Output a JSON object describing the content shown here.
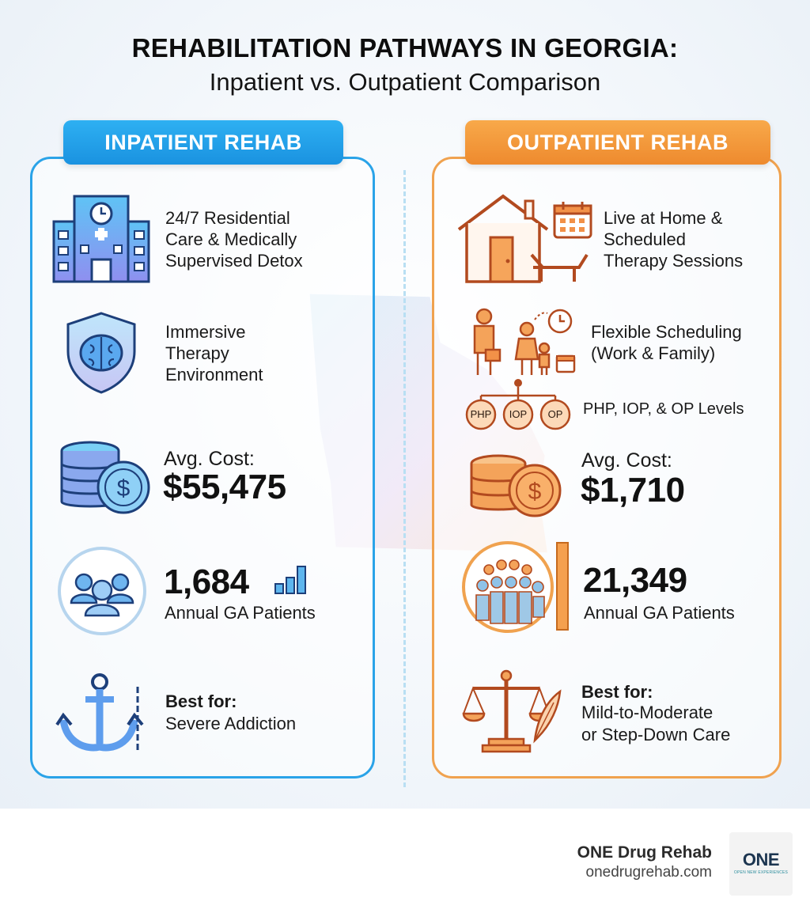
{
  "header": {
    "title": "REHABILITATION PATHWAYS IN GEORGIA:",
    "subtitle": "Inpatient vs. Outpatient Comparison"
  },
  "inpatient": {
    "badge": "INPATIENT REHAB",
    "care_lines": [
      "24/7 Residential",
      "Care & Medically",
      "Supervised Detox"
    ],
    "therapy_lines": [
      "Immersive",
      "Therapy",
      "Environment"
    ],
    "cost_label": "Avg. Cost:",
    "cost_value": "$55,475",
    "patients_value": "1,684",
    "patients_label": "Annual GA Patients",
    "best_label": "Best for:",
    "best_value": "Severe Addiction"
  },
  "outpatient": {
    "badge": "OUTPATIENT REHAB",
    "home_lines": [
      "Live at Home &",
      "Scheduled",
      "Therapy Sessions"
    ],
    "flex_lines": [
      "Flexible Scheduling",
      "(Work & Family)"
    ],
    "levels": "PHP, IOP, & OP Levels",
    "level_badges": [
      "PHP",
      "IOP",
      "OP"
    ],
    "cost_label": "Avg. Cost:",
    "cost_value": "$1,710",
    "patients_value": "21,349",
    "patients_label": "Annual GA Patients",
    "best_label": "Best for:",
    "best_lines": [
      "Mild-to-Moderate",
      "or Step-Down Care"
    ]
  },
  "icons": {
    "inpatient": [
      "hospital-icon",
      "brain-shield-icon",
      "coins-dollar-icon",
      "people-group-icon",
      "bar-chart-icon",
      "anchor-chain-icon"
    ],
    "outpatient": [
      "house-lounger-icon",
      "calendar-icon",
      "family-clock-icon",
      "level-tree-icon",
      "coins-dollar-icon",
      "crowd-icon",
      "scales-quill-icon"
    ]
  },
  "colors": {
    "inpatient": "#2aa3e8",
    "outpatient": "#f0a24f"
  },
  "footer": {
    "brand": "ONE Drug Rehab",
    "url": "onedrugrehab.com",
    "logo_text": "ONE",
    "logo_tagline": "OPEN NEW EXPERIENCES"
  }
}
